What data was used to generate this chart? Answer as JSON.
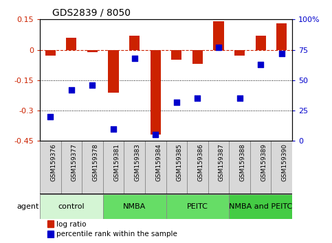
{
  "title": "GDS2839 / 8050",
  "samples": [
    "GSM159376",
    "GSM159377",
    "GSM159378",
    "GSM159381",
    "GSM159383",
    "GSM159384",
    "GSM159385",
    "GSM159386",
    "GSM159387",
    "GSM159388",
    "GSM159389",
    "GSM159390"
  ],
  "log_ratio": [
    -0.03,
    0.06,
    -0.01,
    -0.21,
    0.07,
    -0.42,
    -0.05,
    -0.07,
    0.14,
    -0.03,
    0.07,
    0.13
  ],
  "percentile_rank": [
    20,
    42,
    46,
    10,
    68,
    5,
    32,
    35,
    77,
    35,
    63,
    72
  ],
  "groups": [
    {
      "label": "control",
      "start": 0,
      "end": 3,
      "color": "#d4f5d4"
    },
    {
      "label": "NMBA",
      "start": 3,
      "end": 6,
      "color": "#66dd66"
    },
    {
      "label": "PEITC",
      "start": 6,
      "end": 9,
      "color": "#66dd66"
    },
    {
      "label": "NMBA and PEITC",
      "start": 9,
      "end": 12,
      "color": "#44cc44"
    }
  ],
  "bar_color": "#cc2200",
  "dot_color": "#0000cc",
  "ylim_left": [
    -0.45,
    0.15
  ],
  "yticks_left": [
    0.15,
    0.0,
    -0.15,
    -0.3,
    -0.45
  ],
  "yticks_right": [
    100,
    75,
    50,
    25,
    0
  ],
  "hline_y": 0.0,
  "dotted_lines": [
    -0.15,
    -0.3
  ],
  "bar_width": 0.5,
  "dot_size": 30,
  "legend_items": [
    "log ratio",
    "percentile rank within the sample"
  ],
  "bar_color_legend": "#cc2200",
  "dot_color_legend": "#0000cc",
  "xlabel_color": "#cc2200",
  "ylabel_right_color": "#0000cc",
  "title_fontsize": 10,
  "tick_fontsize": 8,
  "sample_fontsize": 6.5,
  "group_fontsize": 8
}
